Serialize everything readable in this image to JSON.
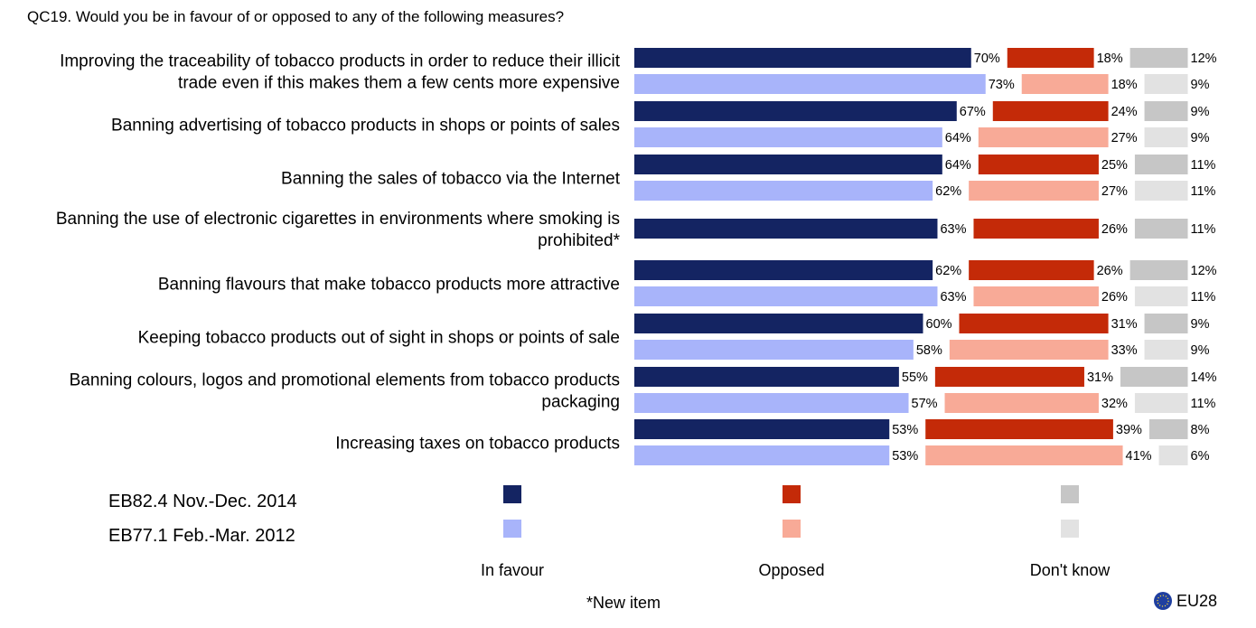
{
  "chart_data": {
    "type": "bar",
    "orientation": "horizontal-stacked",
    "title": "QC19. Would you be in favour of or opposed to any of the following measures?",
    "scope": "EU28",
    "footnote": "*New item",
    "unit": "%",
    "value_suffix": "%",
    "answers": [
      {
        "name": "In favour",
        "colors": [
          "#142462",
          "#a8b4fa"
        ]
      },
      {
        "name": "Opposed",
        "colors": [
          "#c42a08",
          "#f8aa97"
        ]
      },
      {
        "name": "Don't know",
        "colors": [
          "#c6c6c6",
          "#e2e2e2"
        ]
      }
    ],
    "periods": [
      "EB82.4 Nov.-Dec. 2014",
      "EB77.1 Feb.-Mar. 2012"
    ],
    "categories": [
      {
        "label": [
          "Improving the traceability of tobacco products in order to reduce their illicit",
          "trade even if this makes them a few cents more expensive"
        ],
        "rows": [
          [
            70,
            18,
            12
          ],
          [
            73,
            18,
            9
          ]
        ]
      },
      {
        "label": [
          "Banning advertising of tobacco products in shops or points of sales"
        ],
        "rows": [
          [
            67,
            24,
            9
          ],
          [
            64,
            27,
            9
          ]
        ]
      },
      {
        "label": [
          "Banning the sales of tobacco via the Internet"
        ],
        "rows": [
          [
            64,
            25,
            11
          ],
          [
            62,
            27,
            11
          ]
        ]
      },
      {
        "label": [
          "Banning the use of electronic cigarettes in environments where smoking is",
          "prohibited*"
        ],
        "rows": [
          [
            63,
            26,
            11
          ]
        ]
      },
      {
        "label": [
          "Banning flavours that make tobacco products more attractive"
        ],
        "rows": [
          [
            62,
            26,
            12
          ],
          [
            63,
            26,
            11
          ]
        ]
      },
      {
        "label": [
          "Keeping tobacco products out of sight in shops or points of sale"
        ],
        "rows": [
          [
            60,
            31,
            9
          ],
          [
            58,
            33,
            9
          ]
        ]
      },
      {
        "label": [
          "Banning colours, logos and promotional elements from tobacco products",
          "packaging"
        ],
        "rows": [
          [
            55,
            31,
            14
          ],
          [
            57,
            32,
            11
          ]
        ]
      },
      {
        "label": [
          "Increasing taxes on tobacco products"
        ],
        "rows": [
          [
            53,
            39,
            8
          ],
          [
            53,
            41,
            6
          ]
        ]
      }
    ]
  }
}
